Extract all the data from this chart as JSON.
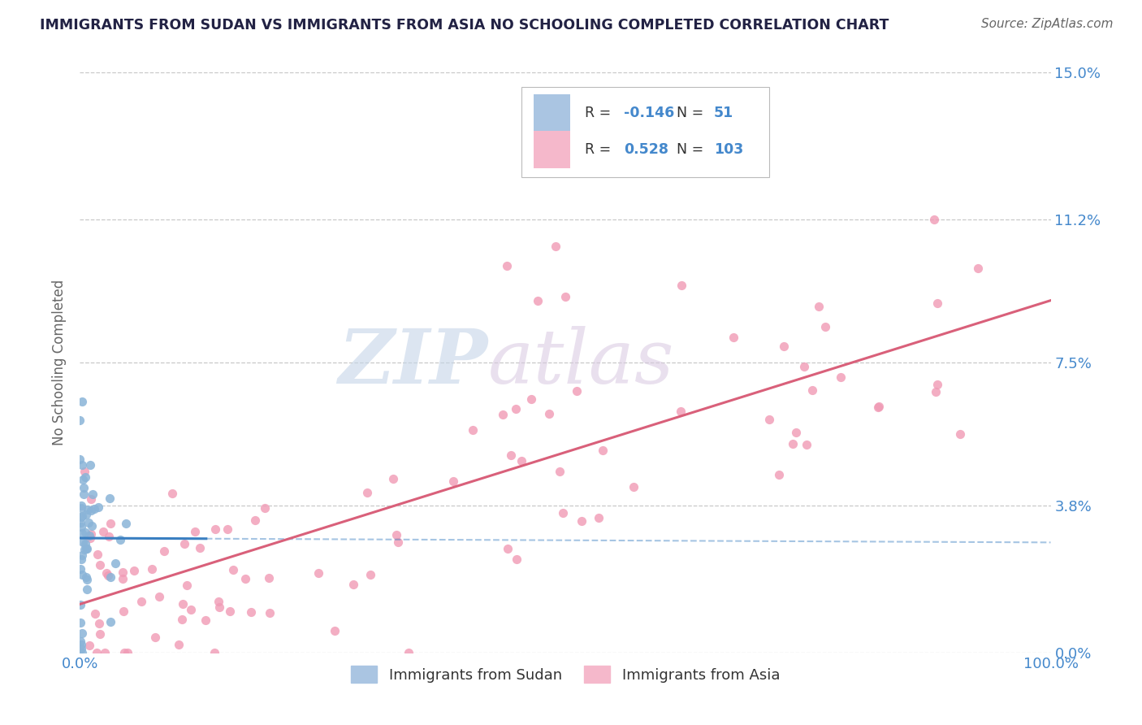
{
  "title": "IMMIGRANTS FROM SUDAN VS IMMIGRANTS FROM ASIA NO SCHOOLING COMPLETED CORRELATION CHART",
  "source": "Source: ZipAtlas.com",
  "ylabel": "No Schooling Completed",
  "xmin": 0.0,
  "xmax": 1.0,
  "ymin": 0.0,
  "ymax": 0.15,
  "ytick_vals": [
    0.0,
    0.038,
    0.075,
    0.112,
    0.15
  ],
  "ytick_labels": [
    "0.0%",
    "3.8%",
    "7.5%",
    "11.2%",
    "15.0%"
  ],
  "xtick_labels": [
    "0.0%",
    "100.0%"
  ],
  "legend_sudan_r": "-0.146",
  "legend_sudan_n": "51",
  "legend_asia_r": "0.528",
  "legend_asia_n": "103",
  "sudan_fill_color": "#aac5e2",
  "asia_fill_color": "#f5b8cb",
  "sudan_line_color": "#3a7fc1",
  "asia_line_color": "#d9607a",
  "sudan_marker_color": "#8ab4d8",
  "asia_marker_color": "#f09ab5",
  "background_color": "#ffffff",
  "grid_color": "#c8c8c8",
  "title_color": "#222244",
  "axis_label_color": "#4488cc",
  "watermark_zip_color": "#c5d5e8",
  "watermark_atlas_color": "#d8c8e0"
}
